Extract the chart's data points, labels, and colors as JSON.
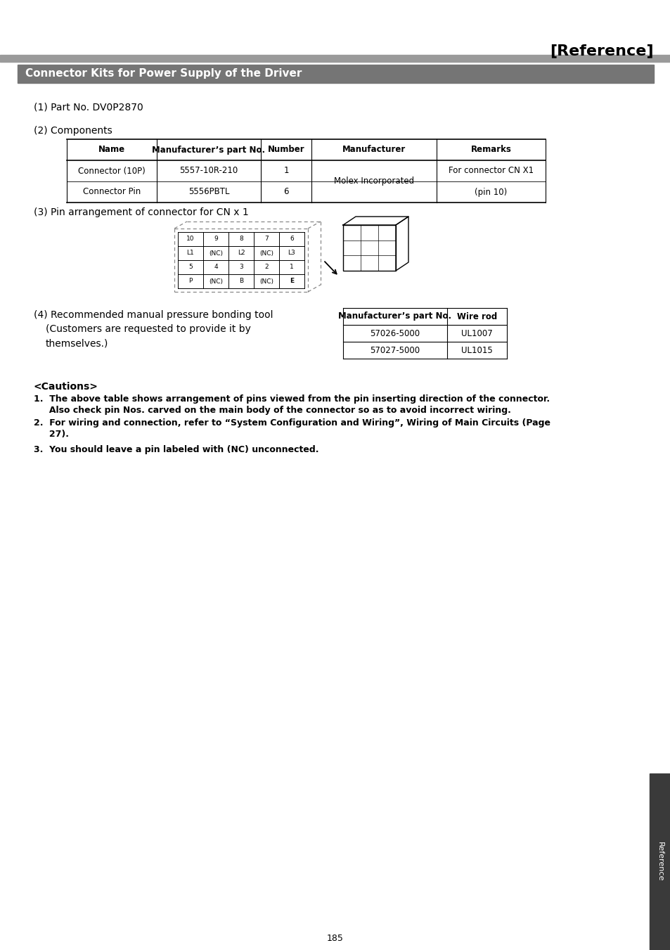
{
  "page_title": "[Reference]",
  "section_header": "Connector Kits for Power Supply of the Driver",
  "part_no_label": "(1) Part No. DV0P2870",
  "components_label": "(2) Components",
  "comp_table_headers": [
    "Name",
    "Manufacturer’s part No.",
    "Number",
    "Manufacturer",
    "Remarks"
  ],
  "comp_table_rows": [
    [
      "Connector (10P)",
      "5557-10R-210",
      "1",
      "Molex Incorporated",
      "For connector CN X1"
    ],
    [
      "Connector Pin",
      "5556PBTL",
      "6",
      "",
      "(pin 10)"
    ]
  ],
  "pin_label": "(3) Pin arrangement of connector for CN x 1",
  "pin_grid_top": [
    [
      "10",
      "9",
      "8",
      "7",
      "6"
    ],
    [
      "L1",
      "(NC)",
      "L2",
      "(NC)",
      "L3"
    ]
  ],
  "pin_grid_bottom": [
    [
      "5",
      "4",
      "3",
      "2",
      "1"
    ],
    [
      "P",
      "(NC)",
      "B",
      "(NC)",
      "E"
    ]
  ],
  "bonding_tool_label": "(4) Recommended manual pressure bonding tool",
  "bonding_tool_sub1": "(Customers are requested to provide it by",
  "bonding_tool_sub2": "themselves.)",
  "bond_table_headers": [
    "Manufacturer’s part No.",
    "Wire rod"
  ],
  "bond_table_rows": [
    [
      "57026-5000",
      "UL1007"
    ],
    [
      "57027-5000",
      "UL1015"
    ]
  ],
  "cautions_header": "<Cautions>",
  "caution1a": "1.  The above table shows arrangement of pins viewed from the pin inserting direction of the connector.",
  "caution1b": "     Also check pin Nos. carved on the main body of the connector so as to avoid incorrect wiring.",
  "caution2a": "2.  For wiring and connection, refer to “System Configuration and Wiring”, Wiring of Main Circuits (Page",
  "caution2b": "     27).",
  "caution3": "3.  You should leave a pin labeled with (NC) unconnected.",
  "page_number": "185",
  "side_label": "Reference",
  "bg_color": "#ffffff",
  "section_bg_color": "#757575",
  "section_text_color": "#ffffff",
  "top_bar_color": "#9a9a9a"
}
